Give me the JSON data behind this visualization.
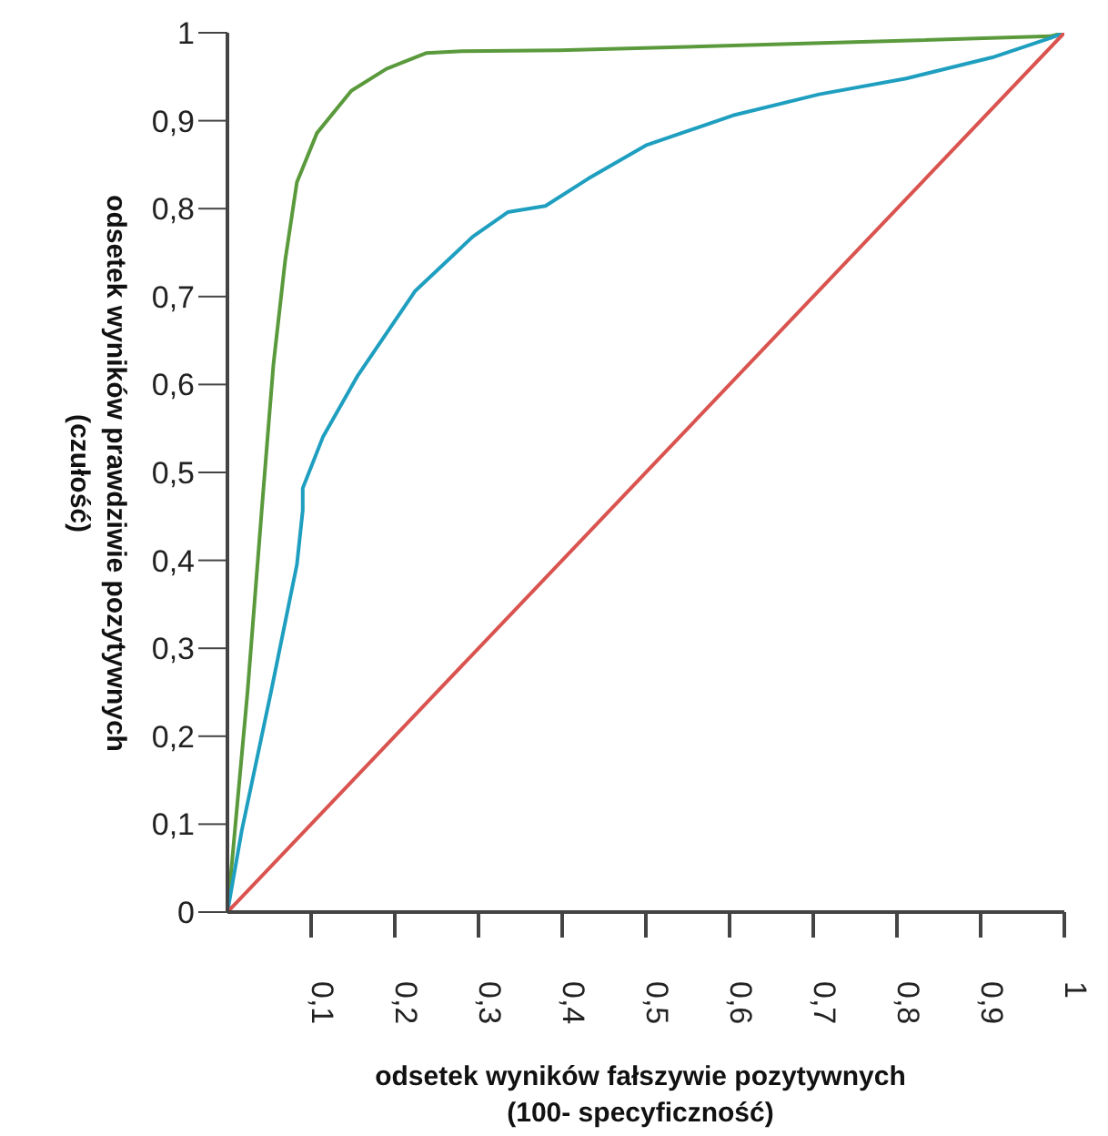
{
  "chart_data": {
    "type": "line",
    "xlabel": "odsetek wyników fałszywie pozytywnych\n(100- specyficzność)",
    "ylabel": "odsetek wyników prawdziwie pozytywnych\n(czułość)",
    "xlim": [
      0,
      1
    ],
    "ylim": [
      0,
      1
    ],
    "xticks": [
      {
        "value": 0.1,
        "label": "0,1"
      },
      {
        "value": 0.2,
        "label": "0,2"
      },
      {
        "value": 0.3,
        "label": "0,3"
      },
      {
        "value": 0.4,
        "label": "0,4"
      },
      {
        "value": 0.5,
        "label": "0,5"
      },
      {
        "value": 0.6,
        "label": "0,6"
      },
      {
        "value": 0.7,
        "label": "0,7"
      },
      {
        "value": 0.8,
        "label": "0,8"
      },
      {
        "value": 0.9,
        "label": "0,9"
      },
      1
    ],
    "yticks": [
      0,
      {
        "value": 0.1,
        "label": "0,1"
      },
      {
        "value": 0.2,
        "label": "0,2"
      },
      {
        "value": 0.3,
        "label": "0,3"
      },
      {
        "value": 0.4,
        "label": "0,4"
      },
      {
        "value": 0.5,
        "label": "0,5"
      },
      {
        "value": 0.6,
        "label": "0,6"
      },
      {
        "value": 0.7,
        "label": "0,7"
      },
      {
        "value": 0.8,
        "label": "0,8"
      },
      {
        "value": 0.9,
        "label": "0,9"
      },
      1
    ],
    "grid": false,
    "legend": false,
    "marker": "none",
    "line_style": "solid",
    "series": [
      {
        "color": "#5a9a3c",
        "x": [
          0,
          0.024,
          0.041,
          0.055,
          0.069,
          0.083,
          0.107,
          0.148,
          0.19,
          0.238,
          0.28,
          0.397,
          0.7,
          0.983,
          1
        ],
        "values": [
          0,
          0.25,
          0.457,
          0.623,
          0.741,
          0.83,
          0.886,
          0.934,
          0.959,
          0.977,
          0.979,
          0.98,
          0.988,
          0.996,
          1
        ]
      },
      {
        "color": "#1f9fc0",
        "x": [
          0,
          0.017,
          0.052,
          0.083,
          0.09,
          0.09,
          0.114,
          0.155,
          0.224,
          0.293,
          0.335,
          0.38,
          0.431,
          0.5,
          0.604,
          0.707,
          0.811,
          0.914,
          0.983,
          1
        ],
        "values": [
          0,
          0.092,
          0.25,
          0.395,
          0.457,
          0.482,
          0.54,
          0.609,
          0.706,
          0.768,
          0.796,
          0.803,
          0.834,
          0.872,
          0.906,
          0.93,
          0.948,
          0.972,
          0.994,
          1
        ]
      },
      {
        "color": "#d9534f",
        "x": [
          0,
          1
        ],
        "values": [
          0,
          1
        ]
      }
    ]
  }
}
